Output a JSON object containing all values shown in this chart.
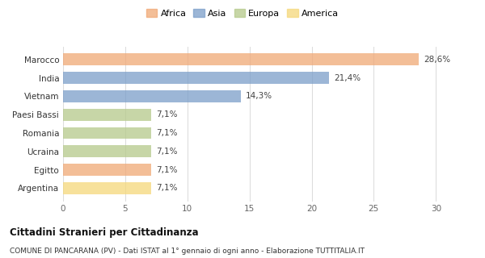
{
  "categories": [
    "Argentina",
    "Egitto",
    "Ucraina",
    "Romania",
    "Paesi Bassi",
    "Vietnam",
    "India",
    "Marocco"
  ],
  "values": [
    7.1,
    7.1,
    7.1,
    7.1,
    7.1,
    14.3,
    21.4,
    28.6
  ],
  "colors": [
    "#f5d87a",
    "#f0a875",
    "#b5c98a",
    "#b5c98a",
    "#b5c98a",
    "#7b9ec9",
    "#7b9ec9",
    "#f0a875"
  ],
  "labels": [
    "7,1%",
    "7,1%",
    "7,1%",
    "7,1%",
    "7,1%",
    "14,3%",
    "21,4%",
    "28,6%"
  ],
  "continent_labels": [
    "Africa",
    "Asia",
    "Europa",
    "America"
  ],
  "continent_colors": [
    "#f0a875",
    "#7b9ec9",
    "#b5c98a",
    "#f5d87a"
  ],
  "xlim": [
    0,
    32
  ],
  "xticks": [
    0,
    5,
    10,
    15,
    20,
    25,
    30
  ],
  "title": "Cittadini Stranieri per Cittadinanza",
  "subtitle": "COMUNE DI PANCARANA (PV) - Dati ISTAT al 1° gennaio di ogni anno - Elaborazione TUTTITALIA.IT",
  "bg_color": "#ffffff",
  "bar_alpha": 0.75,
  "bar_height": 0.65
}
